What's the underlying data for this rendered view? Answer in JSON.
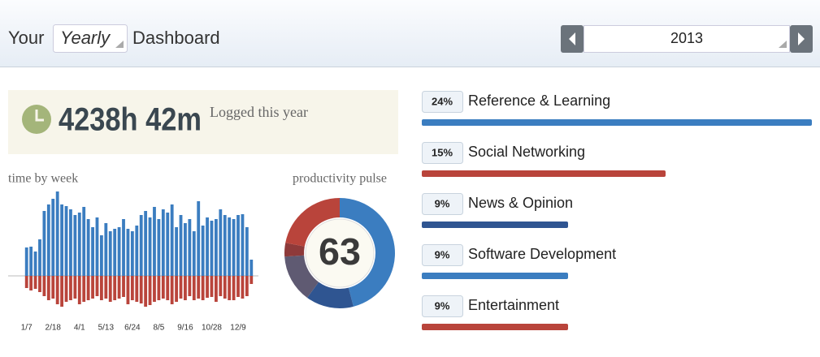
{
  "header": {
    "prefix": "Your",
    "period": "Yearly",
    "suffix": "Dashboard",
    "year": "2013"
  },
  "logged": {
    "value": "4238h 42m",
    "label": "Logged this year"
  },
  "chart_data": [
    {
      "type": "bar",
      "title": "time by week",
      "categories": [
        "1/7",
        null,
        null,
        null,
        null,
        null,
        "2/18",
        null,
        null,
        null,
        null,
        null,
        "4/1",
        null,
        null,
        null,
        null,
        null,
        "5/13",
        null,
        null,
        null,
        null,
        null,
        "6/24",
        null,
        null,
        null,
        null,
        null,
        "8/5",
        null,
        null,
        null,
        null,
        null,
        "9/16",
        null,
        null,
        null,
        null,
        null,
        "10/28",
        null,
        null,
        null,
        null,
        null,
        "12/9",
        null,
        null,
        null
      ],
      "ylim": [
        -45,
        105
      ],
      "series": [
        {
          "color": "#3b7dc0",
          "values": [
            35,
            36,
            30,
            45,
            80,
            88,
            95,
            104,
            88,
            86,
            82,
            75,
            78,
            85,
            70,
            60,
            72,
            50,
            65,
            55,
            58,
            60,
            70,
            58,
            55,
            62,
            75,
            80,
            72,
            85,
            70,
            82,
            78,
            88,
            60,
            75,
            65,
            70,
            55,
            92,
            62,
            72,
            68,
            70,
            82,
            75,
            72,
            70,
            75,
            76,
            60,
            20
          ]
        },
        {
          "color": "#b9443b",
          "values": [
            -15,
            -18,
            -16,
            -20,
            -25,
            -30,
            -28,
            -35,
            -38,
            -32,
            -30,
            -28,
            -35,
            -32,
            -30,
            -28,
            -25,
            -30,
            -28,
            -32,
            -30,
            -28,
            -26,
            -35,
            -30,
            -32,
            -34,
            -38,
            -36,
            -32,
            -30,
            -28,
            -30,
            -35,
            -32,
            -28,
            -30,
            -25,
            -30,
            -28,
            -30,
            -27,
            -26,
            -32,
            -25,
            -28,
            -30,
            -30,
            -26,
            -28,
            -25,
            -10
          ]
        }
      ]
    },
    {
      "type": "donut",
      "title": "productivity pulse",
      "score": 63,
      "values": [
        46,
        14,
        14,
        4,
        22
      ],
      "colors": [
        "#3b7dc0",
        "#2f5591",
        "#5f5a72",
        "#8e3a3a",
        "#b9443b"
      ]
    },
    {
      "type": "hbar",
      "categories": [
        "Reference & Learning",
        "Social Networking",
        "News & Opinion",
        "Software Development",
        "Entertainment"
      ],
      "values": [
        24,
        15,
        9,
        9,
        9
      ],
      "value_labels": [
        "24%",
        "15%",
        "9%",
        "9%",
        "9%"
      ],
      "colors": [
        "#3b7dc0",
        "#b9443b",
        "#2f5591",
        "#3b7dc0",
        "#b9443b"
      ]
    }
  ]
}
